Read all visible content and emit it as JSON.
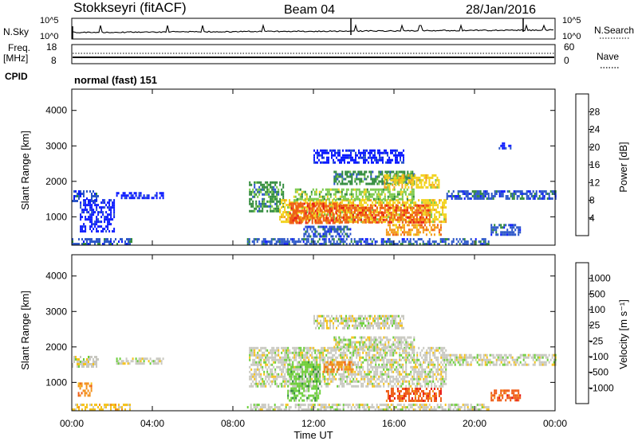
{
  "header": {
    "station": "Stokkseyri (fitACF)",
    "beam": "Beam 04",
    "date": "28/Jan/2016"
  },
  "nsky_panel": {
    "label": "N.Sky",
    "left_ticks": [
      "10^5",
      "10^0"
    ],
    "right_ticks": [
      "10^5",
      "10^0"
    ],
    "right_label": "N.Search"
  },
  "freq_panel": {
    "label_line1": "Freq.",
    "label_line2": "[MHz]",
    "left_ticks": [
      "18",
      "8"
    ],
    "right_ticks": [
      "60",
      "0"
    ],
    "right_label": "Nave",
    "cpid_label": "CPID",
    "cpid_text": "normal (fast) 151"
  },
  "chart_data": [
    {
      "type": "heatmap",
      "name": "power",
      "ylabel": "Slant Range [km]",
      "yticks": [
        "1000",
        "2000",
        "3000",
        "4000"
      ],
      "ylim": [
        200,
        4600
      ],
      "colorbar_label": "Power [dB]",
      "colorbar_ticks": [
        "4",
        "8",
        "12",
        "16",
        "20",
        "24",
        "28"
      ],
      "colorbar_colors": [
        "#0a1aff",
        "#2a55c8",
        "#2f8a3a",
        "#7ac94a",
        "#f2d21a",
        "#f39a1a",
        "#ef5a14",
        "#e81414"
      ],
      "regions": [
        {
          "t": [
            0.0,
            3.0
          ],
          "r": [
            200,
            400
          ],
          "level": 1
        },
        {
          "t": [
            0.0,
            1.3
          ],
          "r": [
            1450,
            1750
          ],
          "level": 1
        },
        {
          "t": [
            0.4,
            2.1
          ],
          "r": [
            600,
            1500
          ],
          "level": 0
        },
        {
          "t": [
            2.2,
            4.5
          ],
          "r": [
            1550,
            1700
          ],
          "level": 0
        },
        {
          "t": [
            8.7,
            20.7
          ],
          "r": [
            200,
            400
          ],
          "level": 1
        },
        {
          "t": [
            8.8,
            10.5
          ],
          "r": [
            1150,
            2000
          ],
          "level": 2
        },
        {
          "t": [
            10.3,
            18.6
          ],
          "r": [
            850,
            1500
          ],
          "level": 4
        },
        {
          "t": [
            10.8,
            13.3
          ],
          "r": [
            850,
            1400
          ],
          "level": 6
        },
        {
          "t": [
            13.3,
            17.8
          ],
          "r": [
            850,
            1350
          ],
          "level": 6
        },
        {
          "t": [
            11.0,
            17.0
          ],
          "r": [
            1500,
            1800
          ],
          "level": 3
        },
        {
          "t": [
            13.0,
            17.0
          ],
          "r": [
            1950,
            2300
          ],
          "level": 2
        },
        {
          "t": [
            15.5,
            18.2
          ],
          "r": [
            1800,
            2200
          ],
          "level": 4
        },
        {
          "t": [
            15.6,
            18.3
          ],
          "r": [
            500,
            800
          ],
          "level": 5
        },
        {
          "t": [
            11.5,
            13.8
          ],
          "r": [
            450,
            750
          ],
          "level": 1
        },
        {
          "t": [
            18.6,
            24.0
          ],
          "r": [
            1500,
            1750
          ],
          "level": 1
        },
        {
          "t": [
            20.8,
            22.3
          ],
          "r": [
            500,
            800
          ],
          "level": 1
        },
        {
          "t": [
            12.0,
            16.5
          ],
          "r": [
            2500,
            2900
          ],
          "level": 0
        },
        {
          "t": [
            21.2,
            21.8
          ],
          "r": [
            2900,
            3100
          ],
          "level": 0
        }
      ]
    },
    {
      "type": "heatmap",
      "name": "velocity",
      "ylabel": "Slant Range [km]",
      "yticks": [
        "1000",
        "2000",
        "3000",
        "4000"
      ],
      "ylim": [
        200,
        4600
      ],
      "xlabel": "Time UT",
      "xticks": [
        "00:00",
        "04:00",
        "08:00",
        "12:00",
        "16:00",
        "20:00",
        "00:00"
      ],
      "xlim": [
        0,
        24
      ],
      "colorbar_label": "Velocity [m s⁻¹]",
      "colorbar_ticks": [
        "1000",
        "500",
        "100",
        "25",
        "-25",
        "-100",
        "-500",
        "-1000"
      ],
      "colorbar_colors": [
        "#1a3ad8",
        "#3f5fb8",
        "#2f8a3a",
        "#6ccf3a",
        "#c8c8c0",
        "#f5c21a",
        "#f3901a",
        "#ef5a14",
        "#e81414"
      ],
      "regions": [
        {
          "t": [
            0.0,
            1.3
          ],
          "r": [
            1450,
            1750
          ],
          "level": 4
        },
        {
          "t": [
            2.2,
            4.5
          ],
          "r": [
            1550,
            1700
          ],
          "level": 4
        },
        {
          "t": [
            0.0,
            3.0
          ],
          "r": [
            200,
            400
          ],
          "level": 5
        },
        {
          "t": [
            0.3,
            1.0
          ],
          "r": [
            600,
            1000
          ],
          "level": 6
        },
        {
          "t": [
            8.8,
            18.6
          ],
          "r": [
            900,
            2000
          ],
          "level": 4
        },
        {
          "t": [
            18.6,
            24.0
          ],
          "r": [
            1500,
            1800
          ],
          "level": 4
        },
        {
          "t": [
            10.7,
            12.3
          ],
          "r": [
            500,
            1600
          ],
          "level": 3
        },
        {
          "t": [
            15.6,
            18.3
          ],
          "r": [
            500,
            850
          ],
          "level": 7
        },
        {
          "t": [
            20.8,
            22.3
          ],
          "r": [
            500,
            800
          ],
          "level": 7
        },
        {
          "t": [
            12.5,
            14.0
          ],
          "r": [
            1300,
            1600
          ],
          "level": 6
        },
        {
          "t": [
            8.7,
            20.7
          ],
          "r": [
            200,
            400
          ],
          "level": 4
        },
        {
          "t": [
            13.0,
            17.0
          ],
          "r": [
            1950,
            2300
          ],
          "level": 4
        },
        {
          "t": [
            12.0,
            16.5
          ],
          "r": [
            2500,
            2900
          ],
          "level": 4
        }
      ]
    }
  ]
}
